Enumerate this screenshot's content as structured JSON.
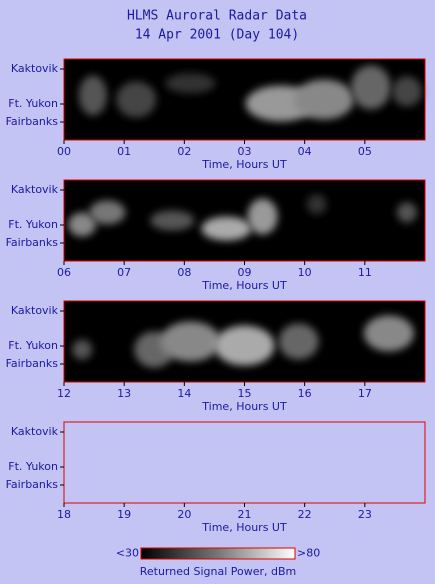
{
  "title": "HLMS Auroral Radar Data",
  "subtitle": "14 Apr 2001 (Day 104)",
  "chart_data": [
    {
      "type": "image",
      "fill": "#000000",
      "xlabel": "Time, Hours UT",
      "xlim": [
        0,
        6
      ],
      "xticks": [
        {
          "value": 0,
          "label": "00"
        },
        {
          "value": 1,
          "label": "01"
        },
        {
          "value": 2,
          "label": "02"
        },
        {
          "value": 3,
          "label": "03"
        },
        {
          "value": 4,
          "label": "04"
        },
        {
          "value": 5,
          "label": "05"
        }
      ],
      "ylabels": [
        "Kaktovik",
        "Ft. Yukon",
        "Fairbanks"
      ]
    },
    {
      "type": "image",
      "fill": "#000000",
      "xlabel": "Time, Hours UT",
      "xlim": [
        6,
        12
      ],
      "xticks": [
        {
          "value": 6,
          "label": "06"
        },
        {
          "value": 7,
          "label": "07"
        },
        {
          "value": 8,
          "label": "08"
        },
        {
          "value": 9,
          "label": "09"
        },
        10,
        11
      ],
      "ylabels": [
        "Kaktovik",
        "Ft. Yukon",
        "Fairbanks"
      ]
    },
    {
      "type": "image",
      "fill": "#000000",
      "xlabel": "Time, Hours UT",
      "xlim": [
        12,
        18
      ],
      "xticks": [
        12,
        13,
        14,
        15,
        16,
        17
      ],
      "ylabels": [
        "Kaktovik",
        "Ft. Yukon",
        "Fairbanks"
      ]
    },
    {
      "type": "image",
      "fill": null,
      "xlabel": "Time, Hours UT",
      "xlim": [
        18,
        24
      ],
      "xticks": [
        18,
        19,
        20,
        21,
        22,
        23
      ],
      "ylabels": [
        "Kaktovik",
        "Ft. Yukon",
        "Fairbanks"
      ]
    }
  ],
  "colorbar": {
    "label": "Returned Signal Power, dBm",
    "lim": [
      30,
      80
    ],
    "ticks": [
      {
        "value": 30,
        "label": "<30"
      },
      {
        "value": 80,
        "label": ">80"
      }
    ]
  }
}
